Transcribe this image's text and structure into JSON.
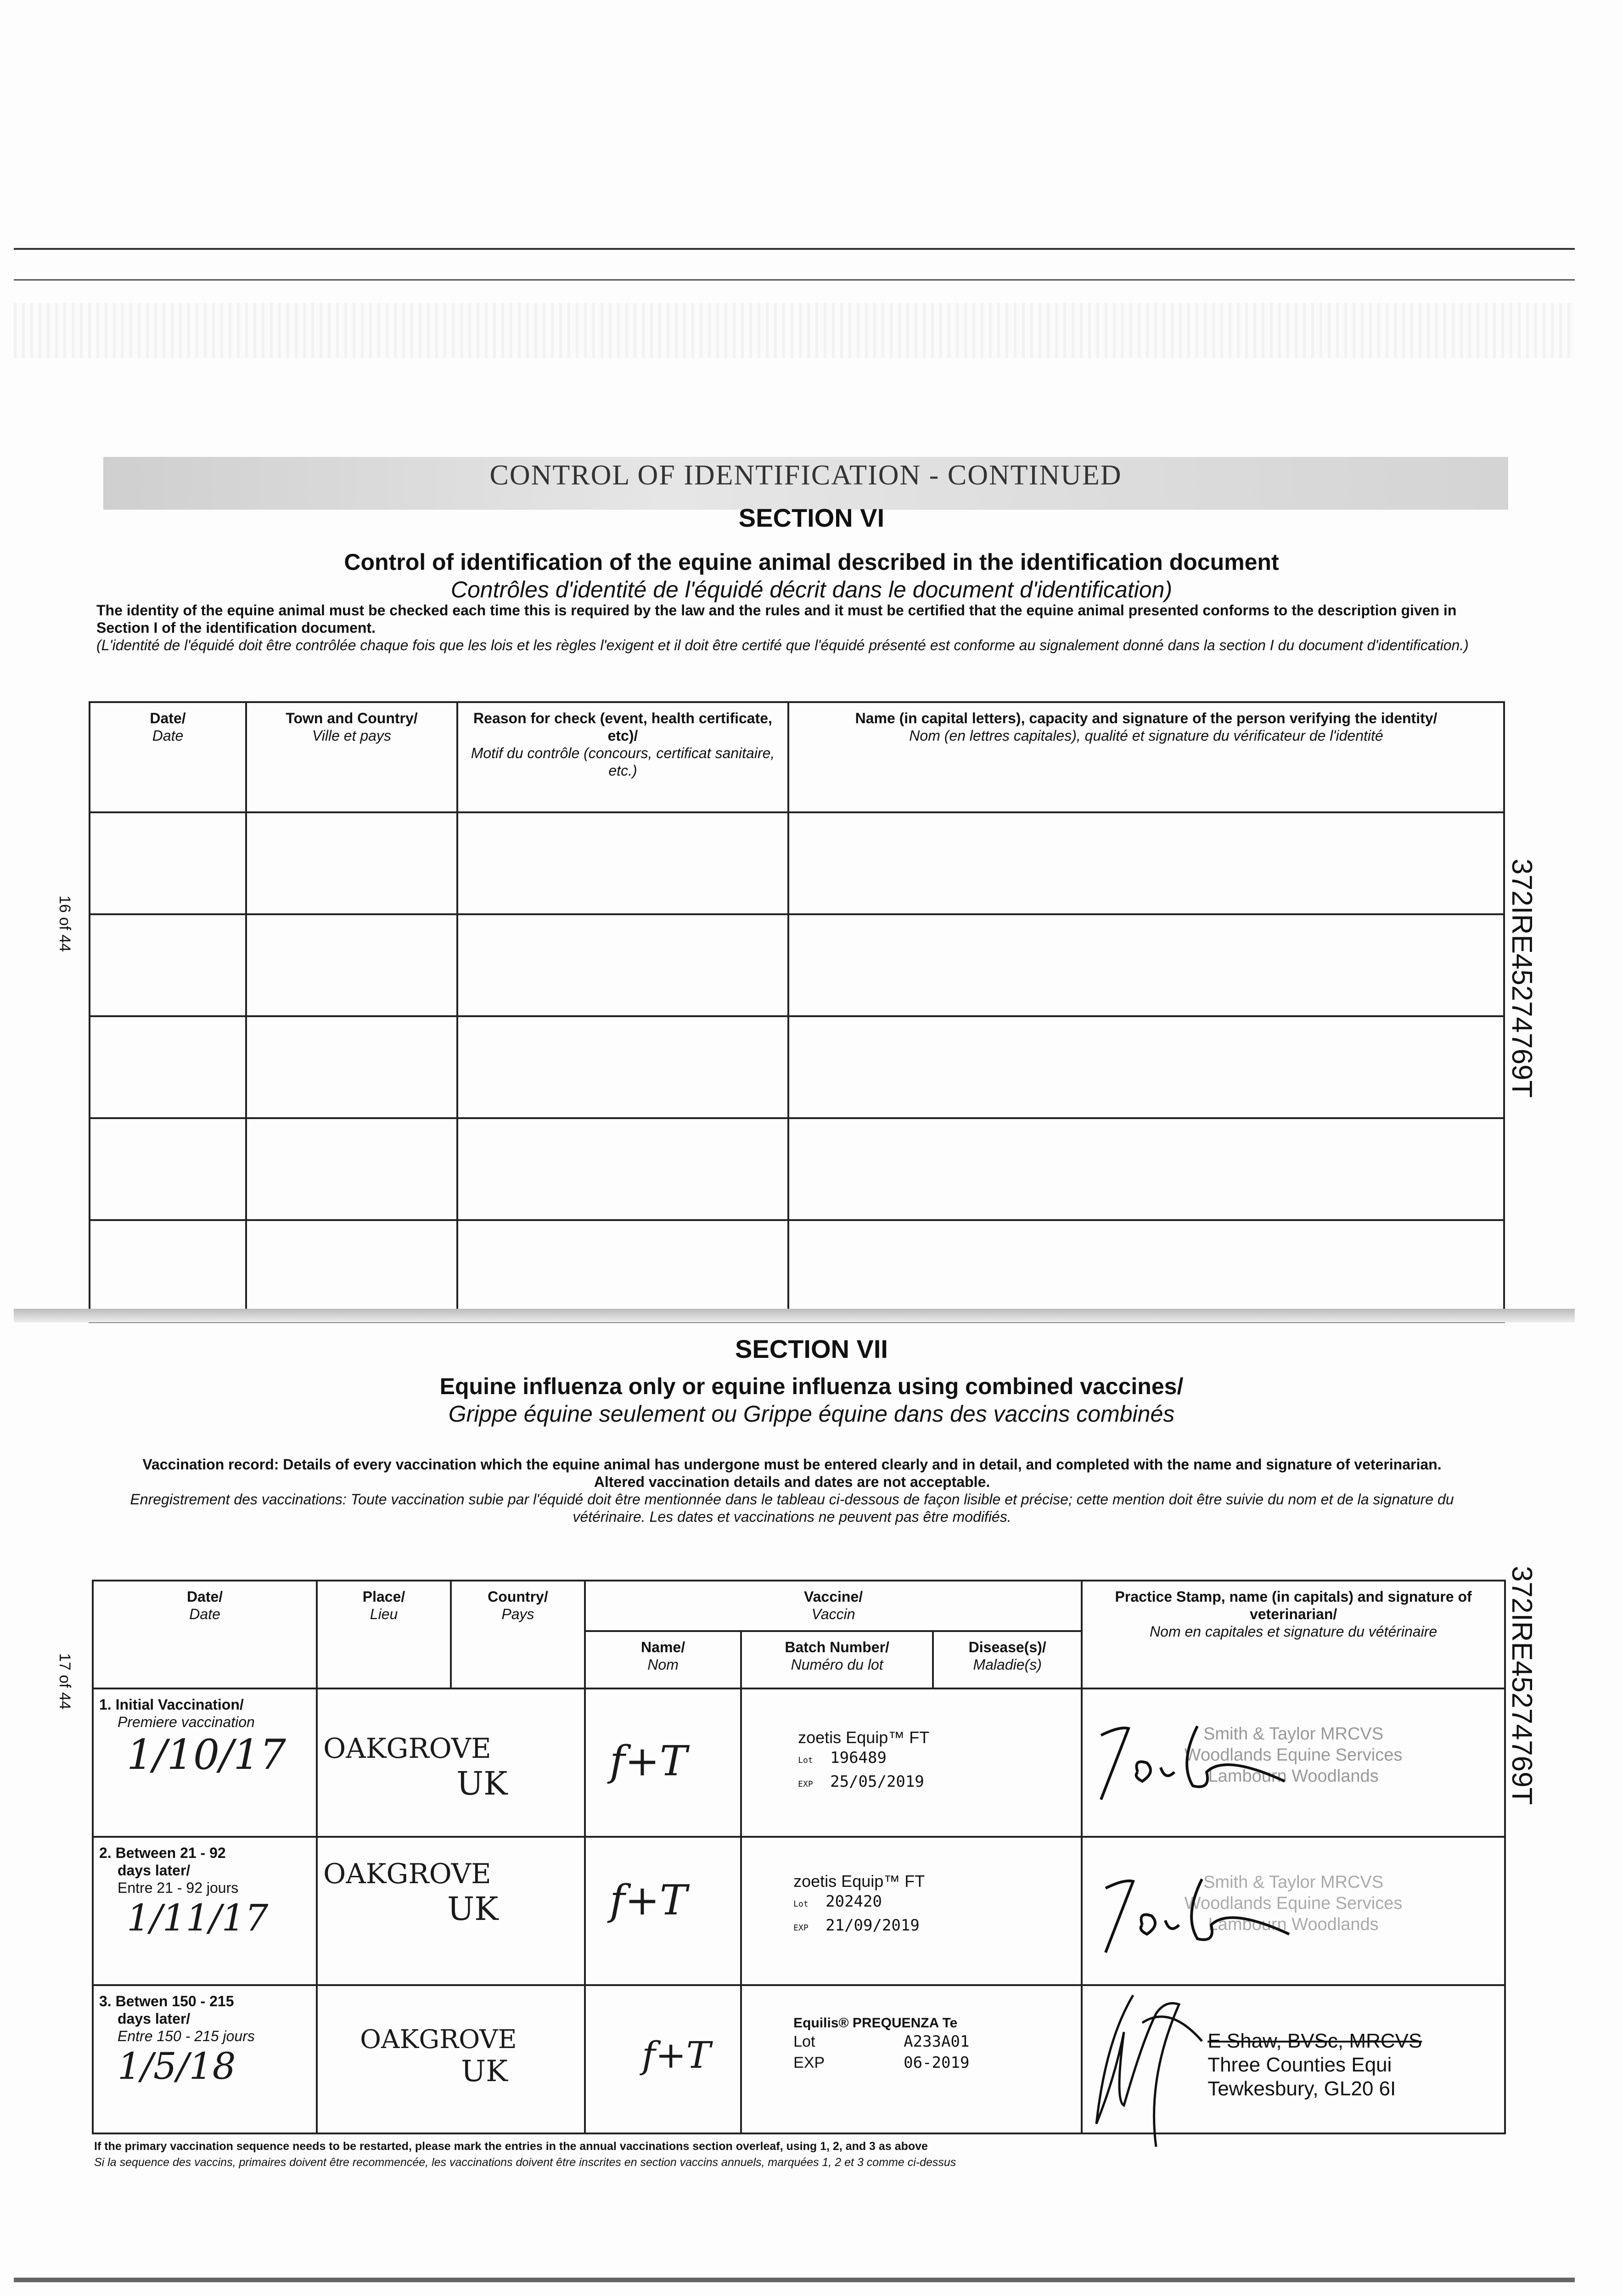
{
  "section6": {
    "banner": "CONTROL OF IDENTIFICATION - CONTINUED",
    "heading": "SECTION VI",
    "title": "Control of identification of the equine animal described in the identification document",
    "title_fr": "Contrôles d'identité de l'équidé décrit dans le document d'identification)",
    "intro": "The identity of the equine animal must be checked each time this is required by the law and the rules and it must be certified that the equine animal presented conforms to the description given in Section I of the identification document.",
    "intro_fr": "(L'identité de l'équidé doit être contrôlée chaque fois que les lois et les règles l'exigent et il doit être certifé que l'équidé présenté est conforme au signalement donné dans la section I du document d'identification.)",
    "columns": [
      {
        "en": "Date/",
        "fr": "Date"
      },
      {
        "en": "Town and Country/",
        "fr": "Ville et pays"
      },
      {
        "en": "Reason for check (event, health certificate, etc)/",
        "fr": "Motif du contrôle (concours, certificat sanitaire, etc.)"
      },
      {
        "en": "Name (in capital letters), capacity and signature of the person verifying the identity/",
        "fr": "Nom (en lettres capitales), qualité et signature du vérificateur de l'identité"
      }
    ],
    "page_label": "16 of 44"
  },
  "side_id": "372IRE45274769T",
  "section7": {
    "heading": "SECTION VII",
    "title": "Equine influenza only or equine influenza using combined vaccines/",
    "title_fr": "Grippe équine seulement ou Grippe équine dans des vaccins combinés",
    "intro_bold": "Vaccination record: Details of every vaccination which the equine animal has undergone must be entered clearly and in detail, and completed with the name and signature of veterinarian.",
    "intro_bold2": "Altered vaccination details and dates are not acceptable.",
    "intro_fr": "Enregistrement des vaccinations: Toute vaccination subie par l'équidé doit être mentionnée dans le tableau ci-dessous de façon lisible et précise; cette mention doit être suivie du nom et de la signature du vétérinaire. Les dates et vaccinations ne peuvent pas être modifiés.",
    "page_label": "17 of 44",
    "headers": {
      "date": {
        "en": "Date/",
        "fr": "Date"
      },
      "place": {
        "en": "Place/",
        "fr": "Lieu"
      },
      "country": {
        "en": "Country/",
        "fr": "Pays"
      },
      "vaccine": {
        "en": "Vaccine/",
        "fr": "Vaccin"
      },
      "name": {
        "en": "Name/",
        "fr": "Nom"
      },
      "batch": {
        "en": "Batch Number/",
        "fr": "Numéro du lot"
      },
      "disease": {
        "en": "Disease(s)/",
        "fr": "Maladie(s)"
      },
      "stamp": {
        "en": "Practice Stamp, name (in capitals) and signature of veterinarian/",
        "fr": "Nom en capitales et signature du vétérinaire"
      }
    },
    "rows": [
      {
        "label": "1. Initial Vaccination/",
        "label2": "",
        "label_fr": "Premiere vaccination",
        "date": "1/10/17",
        "place": "OAKGROVE",
        "country": "UK",
        "name": "f+T",
        "batch_brand": "zoetis Equip™ FT",
        "lot_label": "Lot",
        "lot": "196489",
        "exp_label": "EXP",
        "exp": "25/05/2019",
        "stamp_lines": [
          "Smith & Taylor MRCVS",
          "Woodlands Equine Services",
          "Lambourn Woodlands"
        ]
      },
      {
        "label": "2. Between 21 - 92",
        "label2": "days later/",
        "label_fr": "Entre 21 - 92 jours",
        "date": "1/11/17",
        "place": "OAKGROVE",
        "country": "UK",
        "name": "f+T",
        "batch_brand": "zoetis Equip™ FT",
        "lot_label": "Lot",
        "lot": "202420",
        "exp_label": "EXP",
        "exp": "21/09/2019",
        "stamp_lines": [
          "Smith & Taylor MRCVS",
          "Woodlands Equine Services",
          "Lambourn Woodlands"
        ]
      },
      {
        "label": "3. Betwen 150 - 215",
        "label2": "days later/",
        "label_fr": "Entre 150 - 215 jours",
        "date": "1/5/18",
        "place": "OAKGROVE",
        "country": "UK",
        "name": "f+T",
        "batch_brand": "Equilis® PREQUENZA Te",
        "lot_label": "Lot",
        "lot": "A233A01",
        "exp_label": "EXP",
        "exp": "06-2019",
        "stamp_lines": [
          "E Shaw, BVSc, MRCVS",
          "Three Counties Equi",
          "Tewkesbury, GL20 6I"
        ]
      }
    ],
    "footnote": "If the primary vaccination sequence needs to be restarted, please mark the entries in the annual vaccinations section overleaf, using 1, 2, and 3 as above",
    "footnote_fr": "Si la sequence des vaccins, primaires doivent être recommencée, les vaccinations doivent être inscrites en section vaccins annuels, marquées 1, 2 et 3 comme ci-dessus"
  }
}
